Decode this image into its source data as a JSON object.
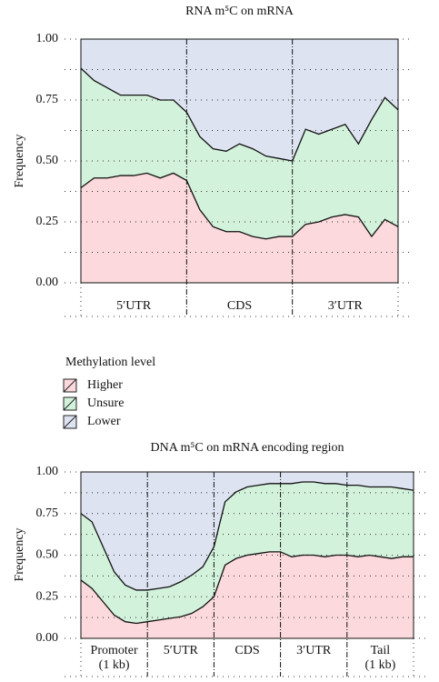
{
  "chart_data": [
    {
      "type": "stacked_area",
      "title": "RNA m⁵C on mRNA",
      "ylabel": "Frequency",
      "regions": [
        [
          "5′UTR"
        ],
        [
          "CDS"
        ],
        [
          "3′UTR"
        ]
      ],
      "ylim": [
        0,
        1
      ],
      "yticks": [
        {
          "value": 0,
          "label": "0.00"
        },
        {
          "value": 0.25,
          "label": "0.25"
        },
        {
          "value": 0.5,
          "label": "0.50"
        },
        {
          "value": 0.75,
          "label": "0.75"
        },
        {
          "value": 1,
          "label": "1.00"
        }
      ],
      "minor_yticks": [
        0.125,
        0.375,
        0.625,
        0.875
      ],
      "grid": true,
      "series": [
        {
          "name": "Higher",
          "color": "#fbd9dc",
          "values": [
            0.39,
            0.43,
            0.43,
            0.44,
            0.44,
            0.45,
            0.43,
            0.45,
            0.42,
            0.3,
            0.23,
            0.21,
            0.21,
            0.19,
            0.18,
            0.19,
            0.19,
            0.24,
            0.25,
            0.27,
            0.28,
            0.27,
            0.19,
            0.26,
            0.23
          ]
        },
        {
          "name": "Unsure",
          "color": "#d3f2dc",
          "values": [
            0.49,
            0.4,
            0.37,
            0.33,
            0.33,
            0.32,
            0.32,
            0.3,
            0.28,
            0.3,
            0.32,
            0.33,
            0.36,
            0.36,
            0.34,
            0.32,
            0.31,
            0.39,
            0.36,
            0.36,
            0.37,
            0.3,
            0.48,
            0.5,
            0.48
          ]
        },
        {
          "name": "Lower",
          "color": "#dde3f1",
          "values": [
            0.12,
            0.17,
            0.2,
            0.23,
            0.23,
            0.23,
            0.25,
            0.25,
            0.3,
            0.4,
            0.45,
            0.46,
            0.43,
            0.45,
            0.48,
            0.49,
            0.5,
            0.37,
            0.39,
            0.37,
            0.35,
            0.43,
            0.33,
            0.24,
            0.29
          ]
        }
      ]
    },
    {
      "type": "stacked_area",
      "title": "DNA m⁵C on mRNA encoding region",
      "ylabel": "Frequency",
      "regions": [
        [
          "Promoter",
          "(1 kb)"
        ],
        [
          "5′UTR"
        ],
        [
          "CDS"
        ],
        [
          "3′UTR"
        ],
        [
          "Tail",
          "(1 kb)"
        ]
      ],
      "ylim": [
        0,
        1
      ],
      "yticks": [
        {
          "value": 0,
          "label": "0.00"
        },
        {
          "value": 0.25,
          "label": "0.25"
        },
        {
          "value": 0.5,
          "label": "0.50"
        },
        {
          "value": 0.75,
          "label": "0.75"
        },
        {
          "value": 1,
          "label": "1.00"
        }
      ],
      "minor_yticks": [
        0.125,
        0.375,
        0.625,
        0.875
      ],
      "grid": true,
      "series": [
        {
          "name": "Higher",
          "color": "#fbd9dc",
          "values": [
            0.35,
            0.3,
            0.22,
            0.14,
            0.1,
            0.09,
            0.1,
            0.11,
            0.12,
            0.13,
            0.15,
            0.19,
            0.25,
            0.44,
            0.48,
            0.5,
            0.51,
            0.52,
            0.52,
            0.49,
            0.5,
            0.5,
            0.49,
            0.5,
            0.5,
            0.49,
            0.5,
            0.49,
            0.48,
            0.49,
            0.49
          ]
        },
        {
          "name": "Unsure",
          "color": "#d3f2dc",
          "values": [
            0.4,
            0.4,
            0.33,
            0.26,
            0.22,
            0.2,
            0.19,
            0.19,
            0.19,
            0.21,
            0.23,
            0.24,
            0.3,
            0.38,
            0.4,
            0.41,
            0.41,
            0.41,
            0.41,
            0.44,
            0.44,
            0.44,
            0.44,
            0.43,
            0.42,
            0.43,
            0.41,
            0.42,
            0.43,
            0.41,
            0.4
          ]
        },
        {
          "name": "Lower",
          "color": "#dde3f1",
          "values": [
            0.25,
            0.3,
            0.45,
            0.6,
            0.68,
            0.71,
            0.71,
            0.7,
            0.69,
            0.66,
            0.62,
            0.57,
            0.45,
            0.18,
            0.12,
            0.09,
            0.08,
            0.07,
            0.07,
            0.07,
            0.06,
            0.06,
            0.07,
            0.07,
            0.08,
            0.08,
            0.09,
            0.09,
            0.09,
            0.1,
            0.11
          ]
        }
      ]
    }
  ],
  "legend": {
    "title": "Methylation level"
  }
}
